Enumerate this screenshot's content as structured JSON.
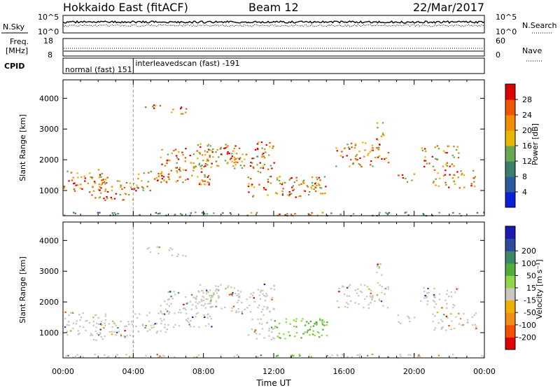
{
  "header": {
    "station": "Hokkaido East (fitACF)",
    "beam": "Beam 12",
    "date": "22/Mar/2017"
  },
  "strip_panels": {
    "nsky": {
      "label": "N.Sky",
      "left_ticks": [
        "10^5",
        "10^0"
      ],
      "right_ticks": [
        "10^5",
        "10^0"
      ],
      "right_label": "N.Search"
    },
    "freq": {
      "label_line1": "Freq.",
      "label_line2": "[MHz]",
      "left_ticks": [
        "18",
        "8"
      ],
      "right_ticks": [
        "60",
        "0"
      ],
      "right_label": "Nave"
    },
    "cpid": {
      "label": "CPID",
      "modes": [
        {
          "name": "normal (fast)",
          "id": "151",
          "start_hour": 0
        },
        {
          "name": "interleavedscan (fast)",
          "id": "-191",
          "start_hour": 4
        }
      ]
    }
  },
  "colors": {
    "power_scale": [
      "#0a1fd6",
      "#2c5aa0",
      "#3a7f6a",
      "#6aa84f",
      "#e8b800",
      "#f28c00",
      "#ee5500",
      "#dd0000"
    ],
    "velocity_scale": [
      "#e00000",
      "#f05000",
      "#f08c1a",
      "#f0b000",
      "#c8c8c0",
      "#8fd64a",
      "#4fae3a",
      "#3a8a6a",
      "#2c4aa0",
      "#1a1ab0"
    ]
  },
  "chart_data": [
    {
      "type": "heatmap",
      "name": "power",
      "ylabel": "Slant Range [km]",
      "y_ticks": [
        1000,
        2000,
        3000,
        4000
      ],
      "ylim": [
        180,
        4600
      ],
      "colorbar_label": "Power [dB]",
      "colorbar_ticks": [
        4,
        8,
        12,
        16,
        20,
        24,
        28
      ],
      "colorbar_range": [
        0,
        32
      ],
      "x_ticks": [
        "00:00",
        "04:00",
        "08:00",
        "12:00",
        "16:00",
        "20:00",
        "00:00"
      ],
      "xlim_hours": [
        0,
        24
      ]
    },
    {
      "type": "heatmap",
      "name": "velocity",
      "ylabel": "Slant Range [km]",
      "y_ticks": [
        1000,
        2000,
        3000,
        4000
      ],
      "ylim": [
        180,
        4600
      ],
      "colorbar_label": "Velocity [m s⁻¹]",
      "colorbar_ticks": [
        -200,
        -100,
        -50,
        -15,
        15,
        50,
        100,
        200
      ],
      "x_ticks": [
        "00:00",
        "04:00",
        "08:00",
        "12:00",
        "16:00",
        "20:00",
        "00:00"
      ],
      "xlabel": "Time UT",
      "xlim_hours": [
        0,
        24
      ]
    }
  ]
}
